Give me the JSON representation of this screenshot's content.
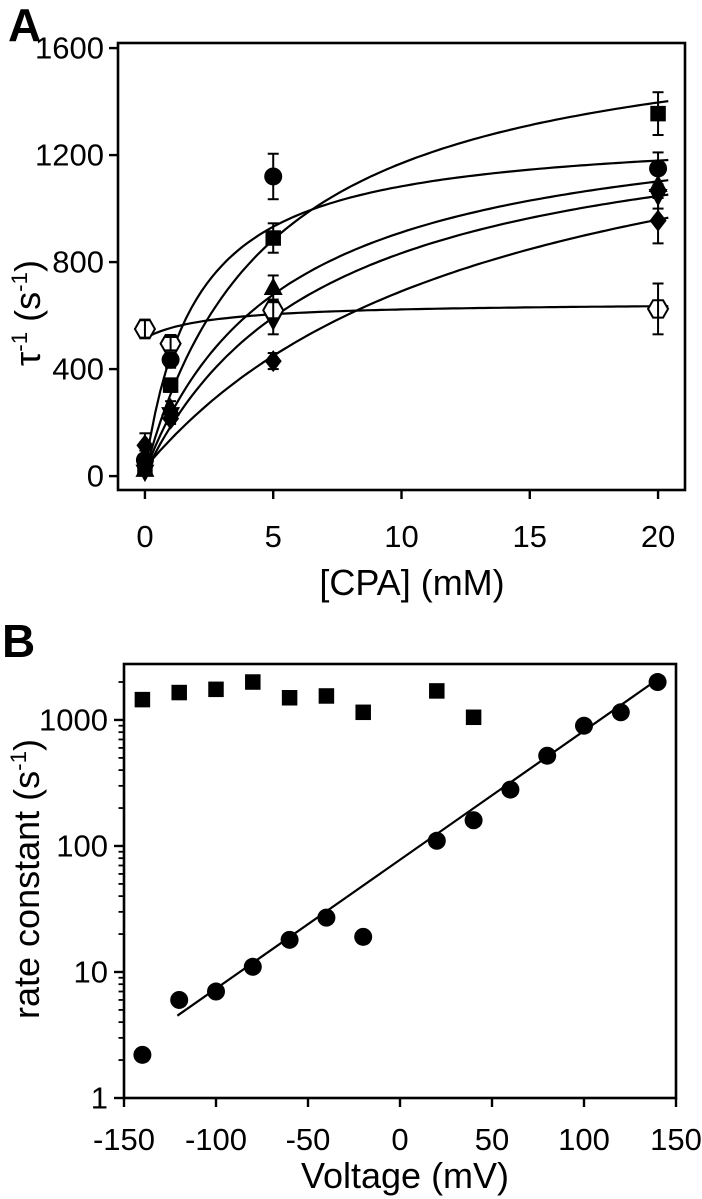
{
  "figure": {
    "description": "Two-panel scientific figure: CPA concentration dependence of tau inverse (A) and voltage dependence of rate constants (B)"
  },
  "panelA": {
    "label": "A",
    "x_title": "[CPA] (mM)",
    "y_title_parts": {
      "base": "τ",
      "sup1": "-1",
      "mid": " (s",
      "sup2": "-1",
      "end": ")"
    }
  },
  "panelB": {
    "label": "B",
    "x_title": "Voltage (mV)",
    "y_title_parts": {
      "base": "rate constant (s",
      "sup": "-1",
      "end": ")"
    }
  },
  "chart_data": [
    {
      "panel": "A",
      "type": "scatter",
      "title": "",
      "xlabel": "[CPA] (mM)",
      "ylabel": "tau^-1 (s^-1)",
      "xlim": [
        -1.05,
        21.05
      ],
      "ylim": [
        -52,
        1619
      ],
      "x_ticks": [
        0,
        5,
        10,
        15,
        20
      ],
      "y_ticks": [
        0,
        400,
        800,
        1200,
        1600
      ],
      "grid": false,
      "error_bars": true,
      "series": [
        {
          "name": "filled-circle",
          "marker": "circle",
          "x": [
            0,
            1,
            5,
            20
          ],
          "y": [
            60,
            435,
            1120,
            1150
          ],
          "err": [
            35,
            30,
            85,
            60
          ],
          "fit": {
            "model": "saturating",
            "y0": 25,
            "vmax": 1270,
            "k": 2.0
          }
        },
        {
          "name": "filled-square",
          "marker": "square",
          "x": [
            0,
            1,
            5,
            20
          ],
          "y": [
            30,
            340,
            890,
            1355
          ],
          "err": [
            20,
            25,
            55,
            80
          ],
          "fit": {
            "model": "saturating",
            "y0": 15,
            "vmax": 1720,
            "k": 4.9
          }
        },
        {
          "name": "filled-triangle",
          "marker": "triangle-up",
          "x": [
            0,
            1,
            5,
            20
          ],
          "y": [
            25,
            255,
            705,
            1090
          ],
          "err": [
            15,
            25,
            45,
            50
          ],
          "fit": {
            "model": "saturating",
            "y0": 15,
            "vmax": 1380,
            "k": 5.4
          }
        },
        {
          "name": "filled-inverted-triangle",
          "marker": "triangle-down",
          "x": [
            0,
            1,
            5,
            20
          ],
          "y": [
            15,
            230,
            580,
            1045
          ],
          "err": [
            10,
            20,
            50,
            45
          ],
          "fit": {
            "model": "saturating",
            "y0": 10,
            "vmax": 1400,
            "k": 7.0
          }
        },
        {
          "name": "filled-diamond",
          "marker": "diamond",
          "x": [
            0,
            1,
            5,
            20
          ],
          "y": [
            115,
            215,
            430,
            955
          ],
          "err": [
            45,
            20,
            30,
            85
          ],
          "fit": {
            "model": "saturating",
            "y0": 30,
            "vmax": 1560,
            "k": 13.6
          }
        },
        {
          "name": "open-hexagon",
          "marker": "hexagon-open",
          "x": [
            0,
            1,
            5,
            20
          ],
          "y": [
            550,
            495,
            620,
            625
          ],
          "err": [
            35,
            25,
            30,
            95
          ],
          "fit": {
            "model": "saturating",
            "y0": 515,
            "vmax": 135,
            "k": 2.5
          }
        }
      ]
    },
    {
      "panel": "B",
      "type": "scatter",
      "title": "",
      "xlabel": "Voltage (mV)",
      "ylabel": "rate constant (s^-1)",
      "y_scale": "log",
      "xlim": [
        -150,
        150
      ],
      "ylim": [
        1,
        2780
      ],
      "x_ticks": [
        -150,
        -100,
        -50,
        0,
        50,
        100,
        150
      ],
      "y_ticks": [
        1,
        10,
        100,
        1000
      ],
      "grid": false,
      "series": [
        {
          "name": "filled-square",
          "marker": "square",
          "x": [
            -140,
            -120,
            -100,
            -80,
            -60,
            -40,
            -20,
            20,
            40
          ],
          "y": [
            1450,
            1650,
            1750,
            2000,
            1500,
            1550,
            1150,
            1700,
            1050
          ]
        },
        {
          "name": "filled-circle",
          "marker": "circle",
          "x": [
            -140,
            -120,
            -100,
            -80,
            -60,
            -40,
            -20,
            20,
            40,
            60,
            80,
            100,
            120,
            140
          ],
          "y": [
            2.2,
            6,
            7,
            11,
            18,
            27,
            19,
            110,
            160,
            280,
            520,
            900,
            1150,
            2000
          ]
        }
      ],
      "fit_line": {
        "x": [
          -121,
          141
        ],
        "y": [
          4.5,
          2150
        ]
      }
    }
  ]
}
